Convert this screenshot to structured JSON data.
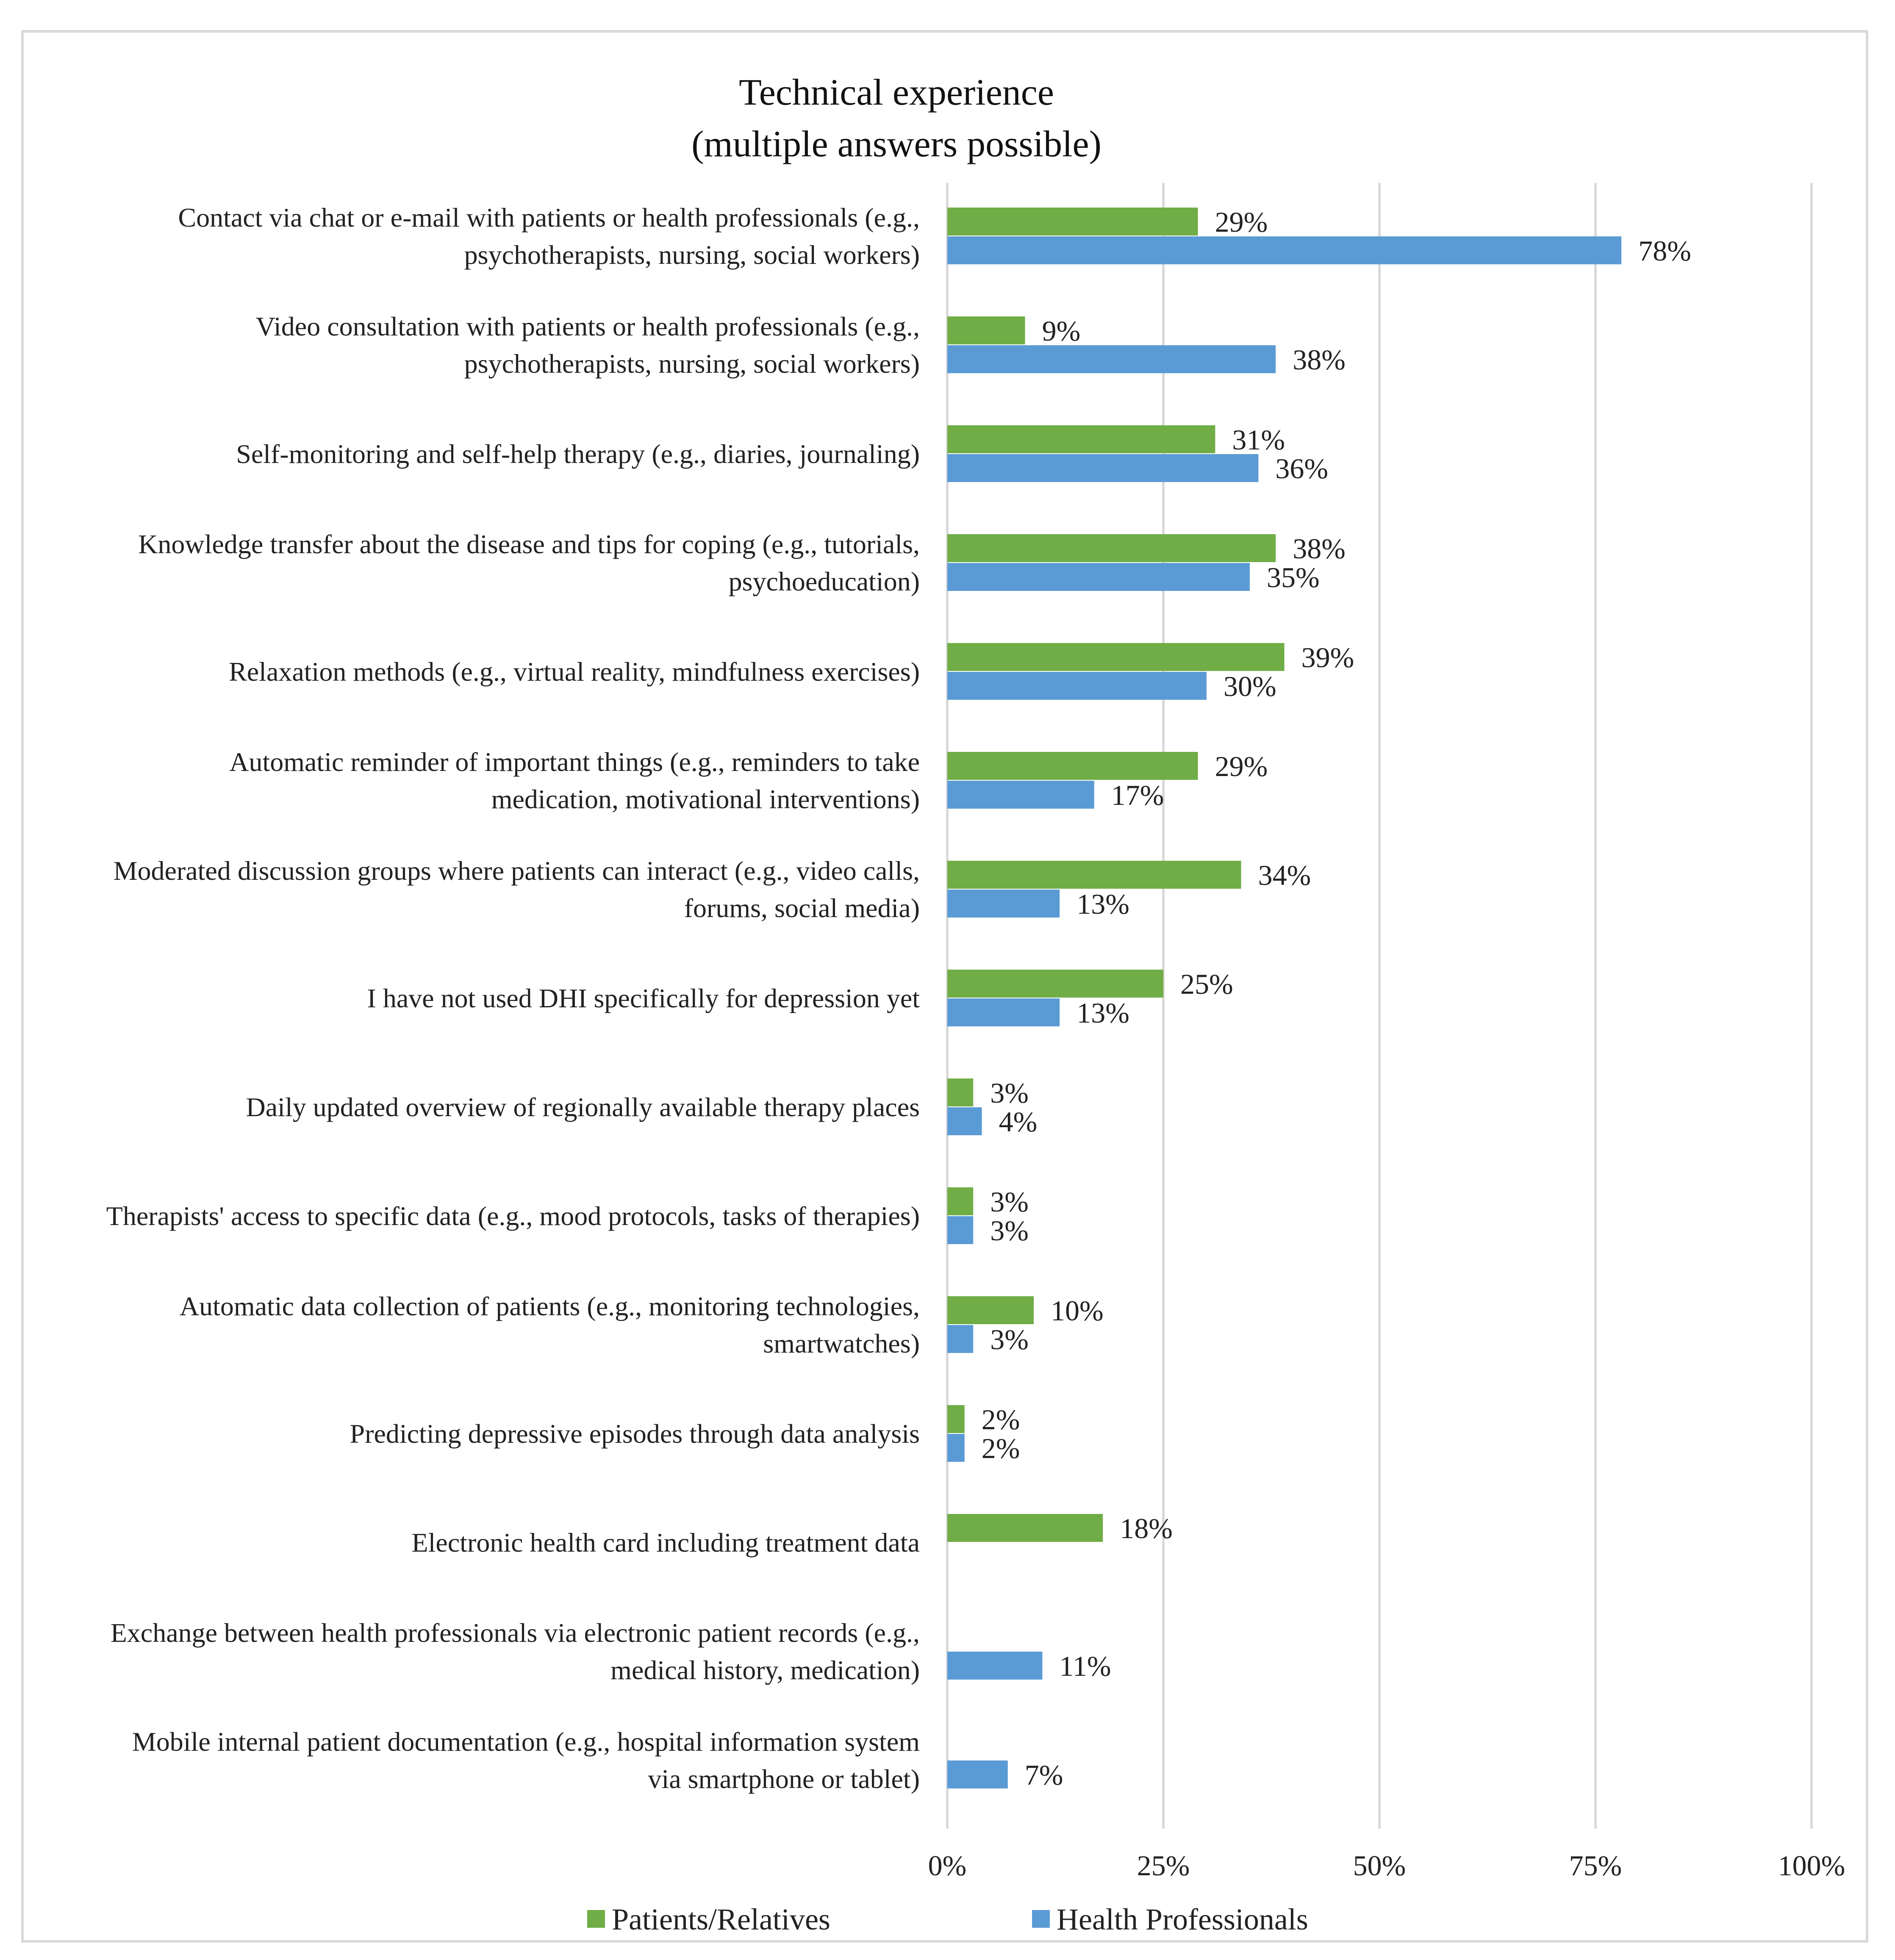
{
  "chart_data": {
    "type": "bar",
    "orientation": "horizontal",
    "title": "Technical experience",
    "subtitle": "(multiple answers possible)",
    "xlim": [
      0,
      100
    ],
    "x_ticks": [
      "0%",
      "25%",
      "50%",
      "75%",
      "100%"
    ],
    "x_tick_values": [
      0,
      25,
      50,
      75,
      100
    ],
    "value_suffix": "%",
    "grid": true,
    "legend_position": "bottom",
    "categories": [
      [
        "Contact via chat or e-mail with patients or health professionals (e.g.,",
        "psychotherapists, nursing, social workers)"
      ],
      [
        "Video consultation with patients or health professionals (e.g.,",
        "psychotherapists, nursing, social workers)"
      ],
      [
        "Self-monitoring and self-help therapy (e.g., diaries, journaling)"
      ],
      [
        "Knowledge transfer about the disease and tips for coping (e.g., tutorials,",
        "psychoeducation)"
      ],
      [
        "Relaxation methods (e.g., virtual reality, mindfulness exercises)"
      ],
      [
        "Automatic reminder of important things (e.g., reminders to take",
        "medication, motivational interventions)"
      ],
      [
        "Moderated discussion groups where patients can interact (e.g., video calls,",
        "forums, social media)"
      ],
      [
        "I have not used DHI specifically for depression yet"
      ],
      [
        "Daily updated overview of regionally available therapy places"
      ],
      [
        "Therapists' access to specific data (e.g., mood protocols, tasks of therapies)"
      ],
      [
        "Automatic data collection of patients (e.g., monitoring technologies,",
        "smartwatches)"
      ],
      [
        "Predicting depressive episodes through data analysis"
      ],
      [
        "Electronic health card including treatment data"
      ],
      [
        "Exchange between health professionals via electronic patient records (e.g.,",
        "medical history, medication)"
      ],
      [
        "Mobile internal patient documentation (e.g., hospital information system",
        "via smartphone or tablet)"
      ]
    ],
    "series": [
      {
        "name": "Patients/Relatives",
        "color": "#70ad47",
        "values": [
          29,
          9,
          31,
          38,
          39,
          29,
          34,
          25,
          3,
          3,
          10,
          2,
          18,
          null,
          null
        ]
      },
      {
        "name": "Health Professionals",
        "color": "#5b9bd5",
        "values": [
          78,
          38,
          36,
          35,
          30,
          17,
          13,
          13,
          4,
          3,
          3,
          2,
          null,
          11,
          7
        ]
      }
    ]
  }
}
